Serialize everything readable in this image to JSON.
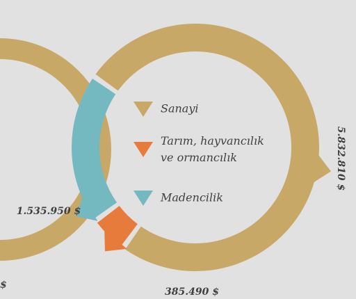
{
  "chart_data": {
    "type": "donut",
    "categories": [
      "Sanayi",
      "Tarım, hayvancılık ve ormancılık",
      "Madencilik"
    ],
    "values": [
      5832810,
      385490,
      1535950
    ],
    "value_labels": [
      "5.832.810 $",
      "385.490 $",
      "1.535.950 $"
    ],
    "colors": [
      "#c8a866",
      "#e77b3c",
      "#74b8c0"
    ],
    "fragment_label": "$"
  }
}
